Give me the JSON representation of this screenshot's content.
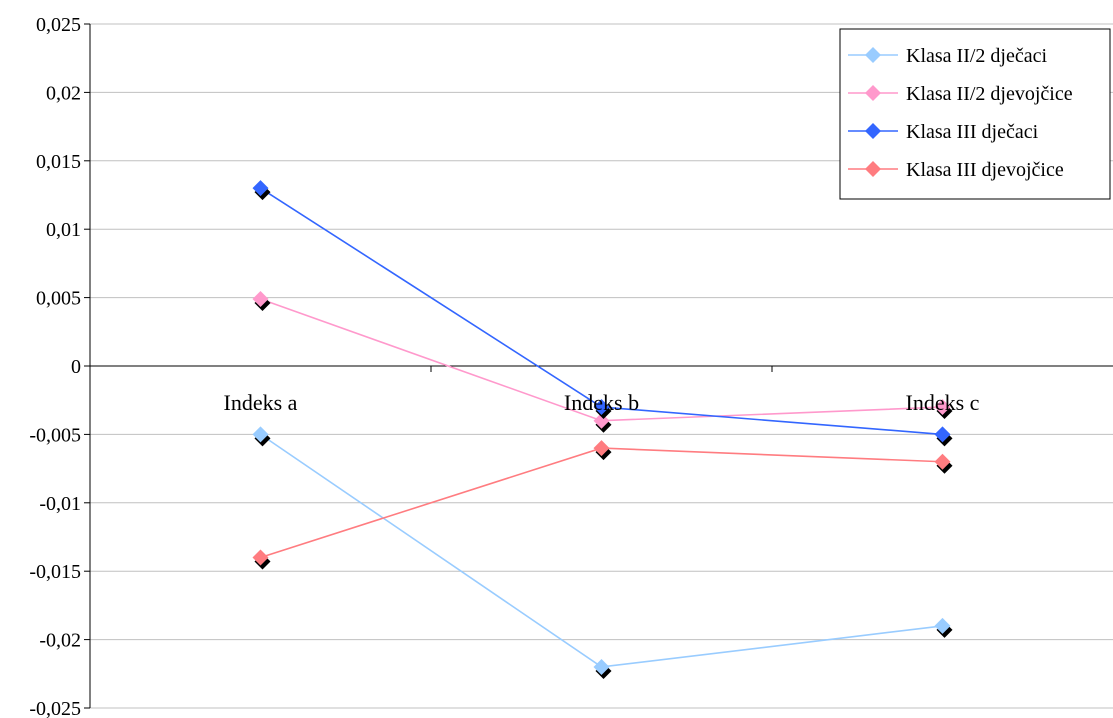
{
  "chart_data": {
    "type": "line",
    "categories": [
      "Indeks a",
      "Indeks b",
      "Indeks c"
    ],
    "ylim": [
      -0.025,
      0.025
    ],
    "ytick_step": 0.005,
    "ytick_labels": [
      "0,025",
      "0,02",
      "0,015",
      "0,01",
      "0,005",
      "0",
      "-0,005",
      "-0,01",
      "-0,015",
      "-0,02",
      "-0,025"
    ],
    "grid": true,
    "legend_position": "top-right",
    "series": [
      {
        "name": "Klasa II/2 dječaci",
        "values": [
          -0.005,
          -0.022,
          -0.019
        ],
        "color": "#99ccff"
      },
      {
        "name": "Klasa II/2 djevojčice",
        "values": [
          0.0049,
          -0.004,
          -0.003
        ],
        "color": "#ff99cc"
      },
      {
        "name": "Klasa III dječaci",
        "values": [
          0.013,
          -0.003,
          -0.005
        ],
        "color": "#3366ff"
      },
      {
        "name": "Klasa III djevojčice",
        "values": [
          -0.014,
          -0.006,
          -0.007
        ],
        "color": "#ff7c80"
      }
    ]
  }
}
